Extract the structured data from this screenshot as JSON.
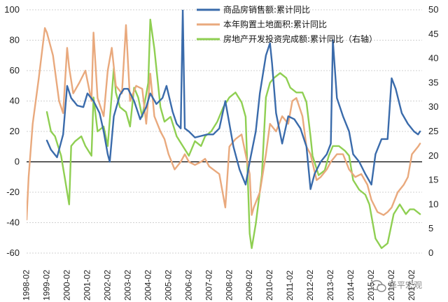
{
  "chart_data": {
    "type": "line",
    "title": "",
    "xlabel": "",
    "ylabel": "",
    "ylim": [
      -60,
      100
    ],
    "y2lim": [
      0,
      50
    ],
    "yticks": [
      -60,
      -40,
      -20,
      0,
      20,
      40,
      60,
      80,
      100
    ],
    "y2ticks": [
      0,
      5,
      10,
      15,
      20,
      25,
      30,
      35,
      40,
      45,
      50
    ],
    "grid": true,
    "legend_position": "top-right",
    "xlim": [
      1998.1,
      2017.6
    ],
    "categories": [
      "1998-02",
      "1999-02",
      "2000-02",
      "2001-02",
      "2002-02",
      "2003-02",
      "2004-02",
      "2005-02",
      "2006-02",
      "2007-02",
      "2008-02",
      "2009-02",
      "2010-02",
      "2011-02",
      "2012-02",
      "2013-02",
      "2014-02",
      "2015-02",
      "2016-02",
      "2017-02"
    ],
    "series": [
      {
        "name": "商品房销售额:累计同比",
        "axis": "left",
        "color": "#3a6bab",
        "x": [
          1999.1,
          1999.3,
          1999.6,
          1999.9,
          2000.1,
          2000.3,
          2000.6,
          2000.9,
          2001.1,
          2001.4,
          2001.7,
          2001.9,
          2002.1,
          2002.2,
          2002.4,
          2002.7,
          2002.9,
          2003.1,
          2003.4,
          2003.7,
          2004.0,
          2004.2,
          2004.5,
          2004.8,
          2005.0,
          2005.3,
          2005.5,
          2005.7,
          2005.8,
          2005.9,
          2006.1,
          2006.4,
          2006.7,
          2007.0,
          2007.3,
          2007.6,
          2007.9,
          2008.1,
          2008.3,
          2008.6,
          2008.9,
          2009.1,
          2009.4,
          2009.6,
          2009.9,
          2010.1,
          2010.2,
          2010.4,
          2010.7,
          2011.0,
          2011.3,
          2011.6,
          2011.9,
          2012.1,
          2012.3,
          2012.6,
          2012.9,
          2013.1,
          2013.2,
          2013.4,
          2013.7,
          2014.0,
          2014.2,
          2014.5,
          2014.8,
          2015.1,
          2015.3,
          2015.6,
          2015.9,
          2016.1,
          2016.3,
          2016.6,
          2016.9,
          2017.2,
          2017.4,
          2017.5
        ],
        "values": [
          14,
          8,
          3,
          18,
          50,
          42,
          37,
          36,
          45,
          40,
          32,
          20,
          5,
          0,
          30,
          44,
          48,
          48,
          40,
          28,
          36,
          45,
          38,
          42,
          50,
          33,
          25,
          22,
          100,
          22,
          20,
          16,
          17,
          18,
          18,
          22,
          40,
          25,
          10,
          -5,
          -15,
          0,
          20,
          45,
          70,
          78,
          65,
          32,
          12,
          30,
          28,
          22,
          10,
          -18,
          -8,
          0,
          5,
          12,
          80,
          42,
          30,
          20,
          5,
          0,
          -8,
          -15,
          5,
          15,
          15,
          55,
          48,
          32,
          25,
          20,
          18,
          20
        ]
      },
      {
        "name": "本年购置土地面积:累计同比",
        "axis": "left",
        "color": "#e9a97d",
        "x": [
          1998.1,
          1998.2,
          1998.4,
          1998.7,
          1999.0,
          1999.1,
          1999.2,
          1999.4,
          1999.7,
          1999.9,
          2000.1,
          2000.2,
          2000.4,
          2000.7,
          2001.0,
          2001.3,
          2001.4,
          2001.6,
          2001.9,
          2002.1,
          2002.3,
          2002.5,
          2002.8,
          2003.0,
          2003.2,
          2003.5,
          2003.8,
          2004.0,
          2004.2,
          2004.4,
          2004.7,
          2004.9,
          2005.1,
          2005.4,
          2005.7,
          2005.9,
          2006.1,
          2006.4,
          2006.7,
          2006.9,
          2007.1,
          2007.3,
          2007.6,
          2007.9,
          2008.1,
          2008.4,
          2008.7,
          2008.9,
          2009.1,
          2009.2,
          2009.3,
          2009.6,
          2009.9,
          2010.1,
          2010.4,
          2010.7,
          2011.0,
          2011.2,
          2011.4,
          2011.7,
          2011.9,
          2012.1,
          2012.4,
          2012.6,
          2012.9,
          2013.1,
          2013.4,
          2013.7,
          2014.0,
          2014.3,
          2014.6,
          2014.9,
          2015.1,
          2015.4,
          2015.7,
          2015.9,
          2016.1,
          2016.4,
          2016.7,
          2016.9,
          2017.1,
          2017.4,
          2017.5
        ],
        "values": [
          -38,
          -10,
          25,
          55,
          88,
          85,
          80,
          70,
          40,
          32,
          75,
          62,
          45,
          52,
          60,
          40,
          85,
          42,
          30,
          60,
          75,
          50,
          45,
          90,
          40,
          50,
          48,
          25,
          58,
          30,
          20,
          15,
          5,
          -5,
          0,
          5,
          0,
          -2,
          0,
          2,
          -3,
          -5,
          -8,
          -30,
          10,
          15,
          18,
          5,
          -8,
          -35,
          -30,
          -20,
          5,
          25,
          20,
          30,
          25,
          40,
          42,
          30,
          10,
          5,
          -12,
          -10,
          -5,
          0,
          5,
          5,
          -5,
          -10,
          -8,
          -15,
          -25,
          -33,
          -35,
          -33,
          -30,
          -20,
          -15,
          -10,
          5,
          10,
          12
        ]
      },
      {
        "name": "房地产开发投资完成额:累计同比（右轴）",
        "axis": "right",
        "color": "#8fcf52",
        "x": [
          1999.1,
          1999.3,
          1999.5,
          1999.8,
          2000.0,
          2000.2,
          2000.3,
          2000.5,
          2000.8,
          2001.0,
          2001.3,
          2001.4,
          2001.6,
          2001.9,
          2002.1,
          2002.4,
          2002.5,
          2002.7,
          2003.0,
          2003.2,
          2003.4,
          2003.6,
          2003.8,
          2004.1,
          2004.2,
          2004.4,
          2004.7,
          2004.9,
          2005.2,
          2005.5,
          2005.8,
          2006.1,
          2006.4,
          2006.7,
          2006.9,
          2007.2,
          2007.5,
          2007.8,
          2008.1,
          2008.4,
          2008.7,
          2008.9,
          2009.1,
          2009.2,
          2009.4,
          2009.7,
          2009.9,
          2010.1,
          2010.3,
          2010.6,
          2010.9,
          2011.1,
          2011.4,
          2011.7,
          2011.9,
          2012.1,
          2012.2,
          2012.5,
          2012.8,
          2013.0,
          2013.2,
          2013.5,
          2013.8,
          2014.0,
          2014.2,
          2014.5,
          2014.8,
          2015.0,
          2015.3,
          2015.6,
          2015.9,
          2016.2,
          2016.5,
          2016.8,
          2017.0,
          2017.2,
          2017.5
        ],
        "values": [
          29,
          25,
          24,
          20,
          15,
          10,
          22,
          23,
          24,
          22,
          20,
          32,
          25,
          26,
          22,
          38,
          33,
          30,
          29,
          26,
          34,
          32,
          28,
          35,
          48,
          42,
          30,
          27,
          28,
          24,
          22,
          20,
          23,
          22,
          24,
          25,
          27,
          30,
          32,
          33,
          31,
          28,
          4,
          1,
          6,
          16,
          32,
          35,
          36,
          37,
          36,
          34,
          33,
          33,
          31,
          24,
          20,
          16,
          17,
          20,
          22,
          22,
          21,
          20,
          15,
          13,
          12,
          10,
          3,
          1,
          2,
          8,
          10,
          8,
          9,
          9,
          8
        ]
      }
    ]
  },
  "watermark": "泽平宏观",
  "watermark_icon": "wechat-icon"
}
